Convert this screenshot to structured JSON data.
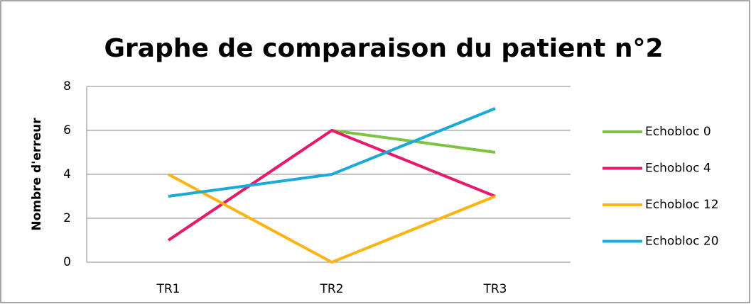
{
  "chart_data": {
    "type": "line",
    "title": "Graphe de comparaison du patient n°2",
    "y_label": "Nombre d'erreur",
    "categories": [
      "TR1",
      "TR2",
      "TR3"
    ],
    "series": [
      {
        "name": "Echobloc 0",
        "color": "#7dc242",
        "values": [
          1,
          6,
          5
        ]
      },
      {
        "name": "Echobloc 4",
        "color": "#e6196e",
        "values": [
          1,
          6,
          3
        ]
      },
      {
        "name": "Echobloc 12",
        "color": "#fbb414",
        "values": [
          4,
          0,
          3
        ]
      },
      {
        "name": "Echobloc 20",
        "color": "#1ba9d9",
        "values": [
          3,
          4,
          7
        ]
      }
    ],
    "ylim": [
      0,
      8
    ],
    "yticks": [
      0,
      2,
      4,
      6,
      8
    ],
    "grid": true,
    "legend": "right"
  }
}
